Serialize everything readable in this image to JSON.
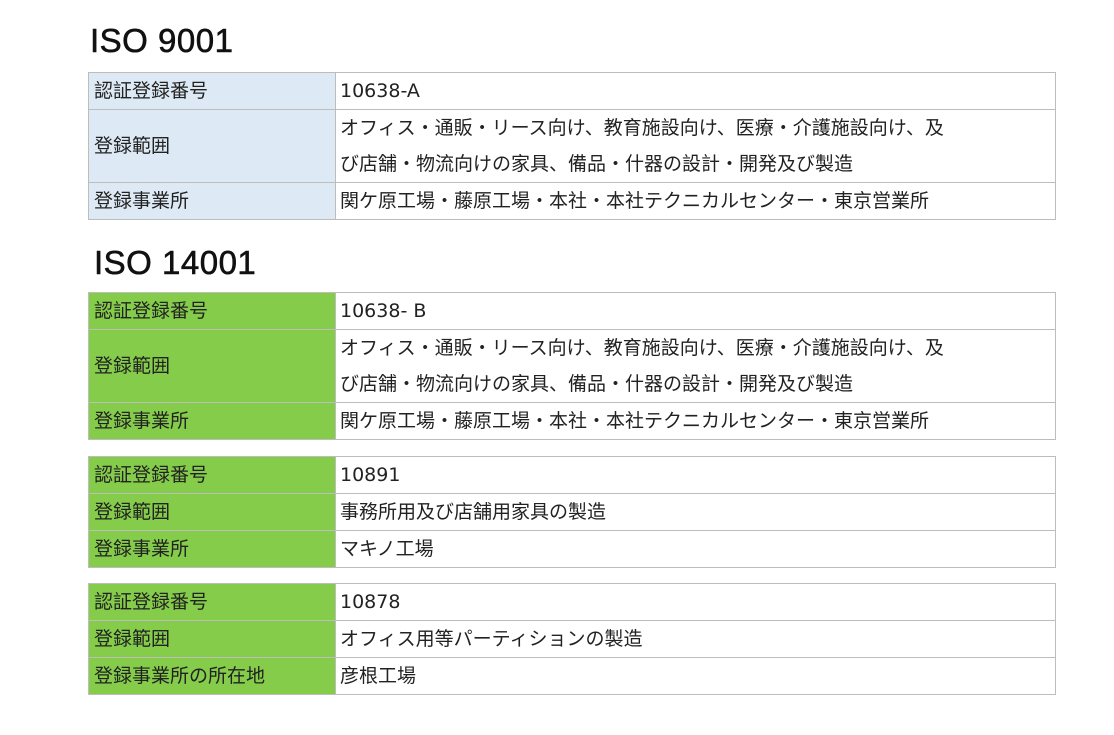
{
  "iso9001": {
    "title": "ISO 9001",
    "rows": [
      {
        "label": "認証登録番号",
        "value": "10638-A"
      },
      {
        "label": "登録範囲",
        "value": "オフィス・通販・リース向け、教育施設向け、医療・介護施設向け、及び店舗・物流向けの家具、備品・什器の設計・開発及び製造",
        "line1": "オフィス・通販・リース向け、教育施設向け、医療・介護施設向け、及",
        "line2": "び店舗・物流向けの家具、備品・什器の設計・開発及び製造"
      },
      {
        "label": "登録事業所",
        "value": "関ケ原工場・藤原工場・本社・本社テクニカルセンター・東京営業所"
      }
    ]
  },
  "iso14001": {
    "title": "ISO 14001",
    "tables": [
      {
        "rows": [
          {
            "label": "認証登録番号",
            "value": "10638- B"
          },
          {
            "label": "登録範囲",
            "line1": "オフィス・通販・リース向け、教育施設向け、医療・介護施設向け、及",
            "line2": "び店舗・物流向けの家具、備品・什器の設計・開発及び製造"
          },
          {
            "label": "登録事業所",
            "value": "関ケ原工場・藤原工場・本社・本社テクニカルセンター・東京営業所"
          }
        ]
      },
      {
        "rows": [
          {
            "label": "認証登録番号",
            "value": "10891"
          },
          {
            "label": "登録範囲",
            "value": "事務所用及び店舗用家具の製造"
          },
          {
            "label": "登録事業所",
            "value": "マキノ工場"
          }
        ]
      },
      {
        "rows": [
          {
            "label": "認証登録番号",
            "value": "10878"
          },
          {
            "label": "登録範囲",
            "value": "オフィス用等パーティションの製造"
          },
          {
            "label": "登録事業所の所在地",
            "value": "彦根工場"
          }
        ]
      }
    ]
  },
  "colors": {
    "iso9001_label_bg": "#dde9f4",
    "iso14001_label_bg": "#84cc4a",
    "border": "#bdbdbd"
  }
}
